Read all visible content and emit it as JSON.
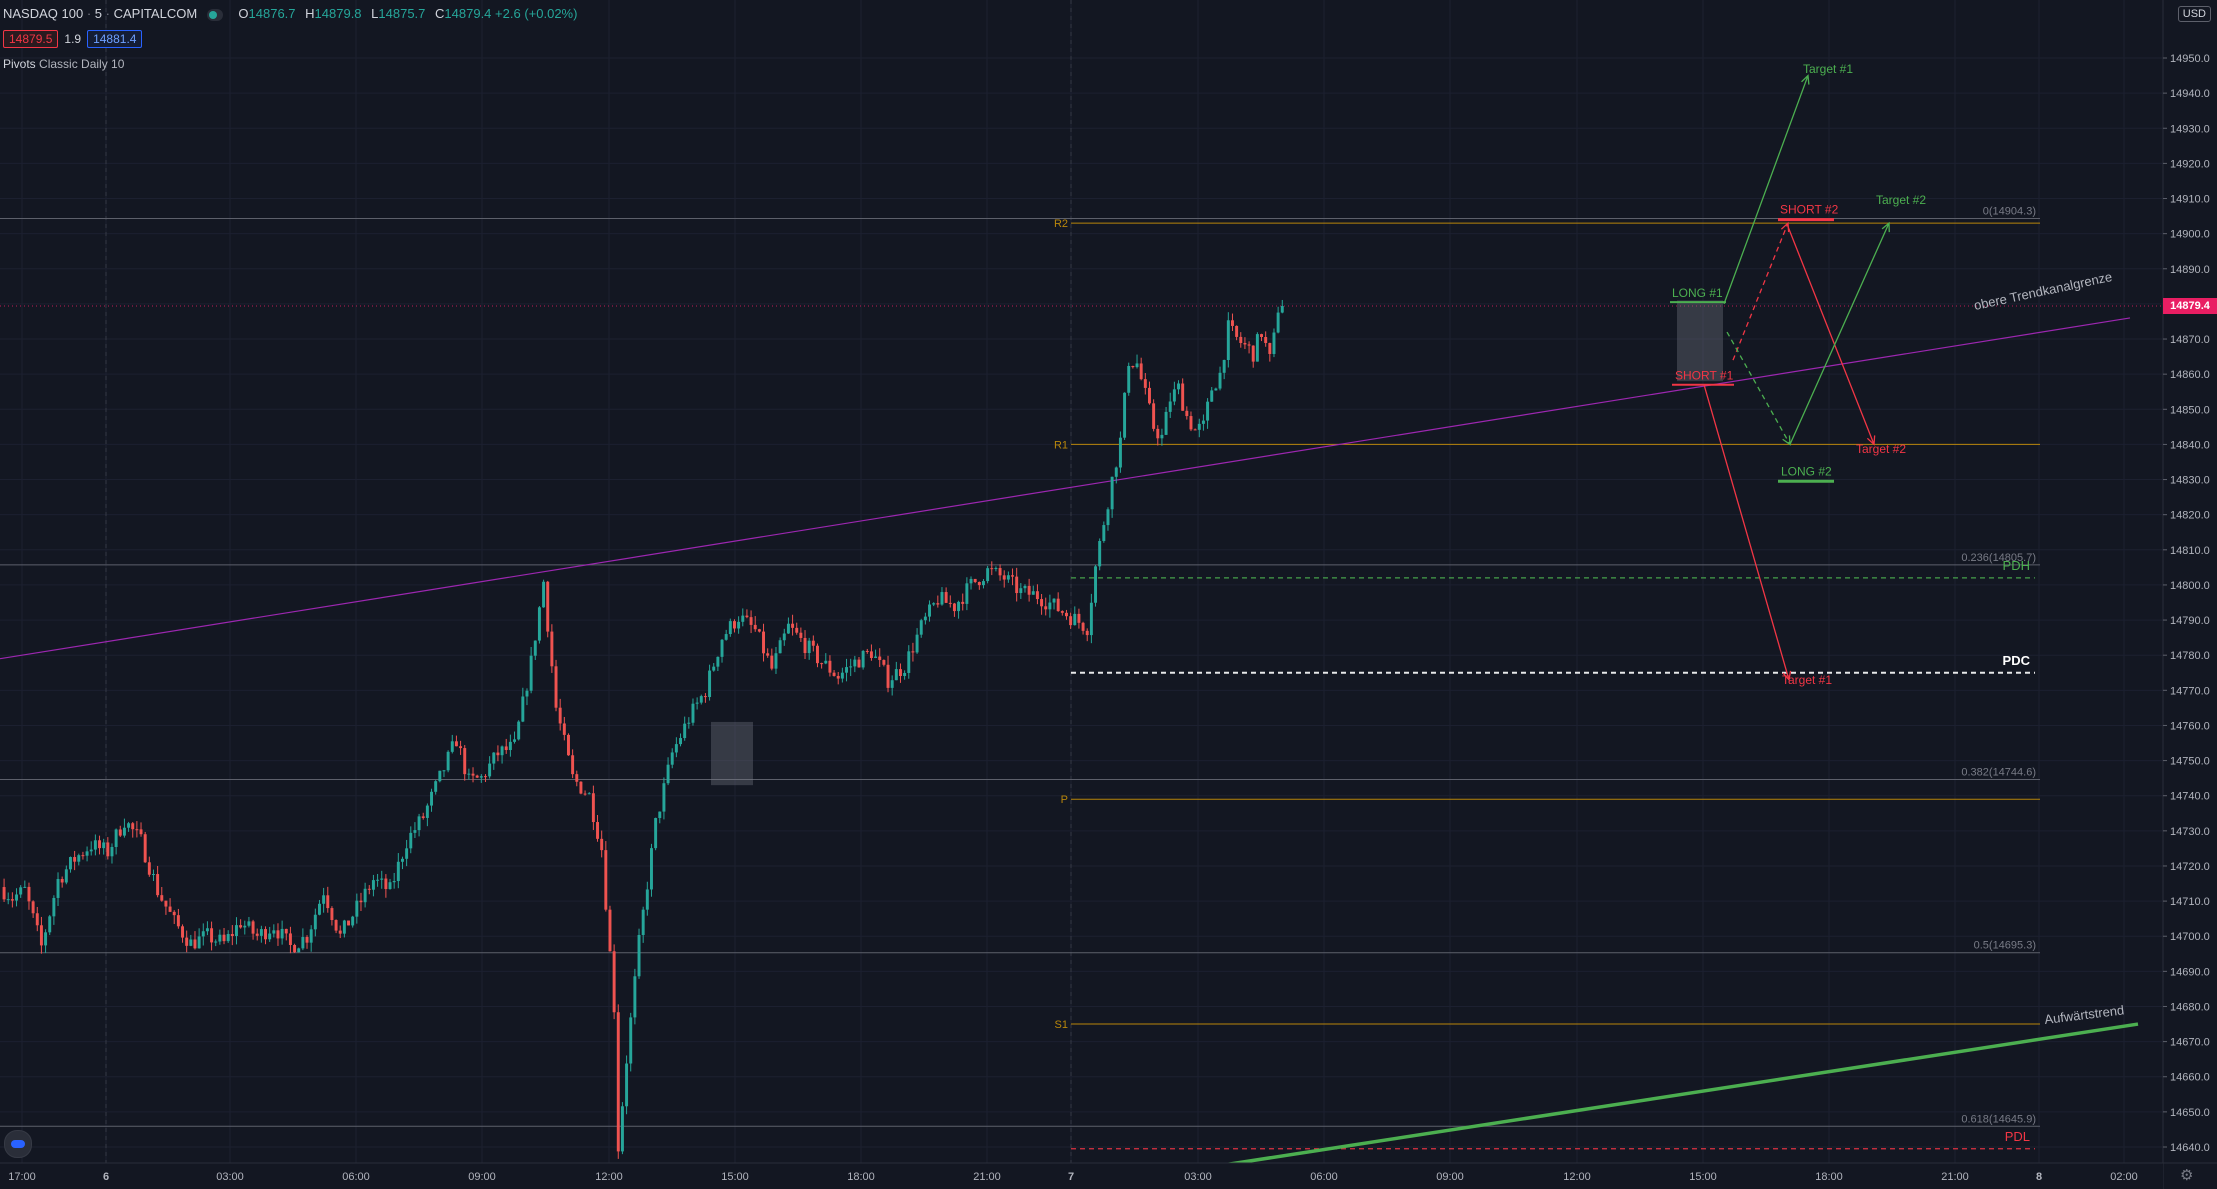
{
  "header": {
    "symbol": "NASDAQ 100",
    "interval": "5",
    "exchange": "CAPITALCOM",
    "open_label": "O",
    "open": "14876.7",
    "high_label": "H",
    "high": "14879.8",
    "low_label": "L",
    "low": "14875.7",
    "close_label": "C",
    "close": "14879.4",
    "change": "+2.6 (+0.02%)",
    "bid": "14879.5",
    "spread": "1.9",
    "ask": "14881.4",
    "indicator_name": "Pivots",
    "indicator_params": "Classic Daily 10",
    "currency": "USD"
  },
  "colors": {
    "background": "#131722",
    "up": "#26a69a",
    "down": "#ef5350",
    "pivot": "#b8860b",
    "trend_purple": "#9c27b0",
    "trend_green": "#4caf50",
    "price_tag": "#e91e63",
    "fib": "#787b86"
  },
  "chart_data": {
    "type": "candlestick",
    "ylim": [
      14632,
      14958
    ],
    "y_ticks": [
      "14950.0",
      "14940.0",
      "14930.0",
      "14920.0",
      "14910.0",
      "14900.0",
      "14890.0",
      "14880.0",
      "14870.0",
      "14860.0",
      "14850.0",
      "14840.0",
      "14830.0",
      "14820.0",
      "14810.0",
      "14800.0",
      "14790.0",
      "14780.0",
      "14770.0",
      "14760.0",
      "14750.0",
      "14740.0",
      "14730.0",
      "14720.0",
      "14710.0",
      "14700.0",
      "14690.0",
      "14680.0",
      "14670.0",
      "14660.0",
      "14650.0",
      "14640.0"
    ],
    "x_ticks": [
      "17:00",
      "6",
      "03:00",
      "06:00",
      "09:00",
      "12:00",
      "15:00",
      "18:00",
      "21:00",
      "7",
      "03:00",
      "06:00",
      "09:00",
      "12:00",
      "15:00",
      "18:00",
      "21:00",
      "8",
      "02:00"
    ],
    "last_price": "14879.4",
    "price_path": [
      [
        0,
        14714
      ],
      [
        3,
        14711
      ],
      [
        6,
        14713
      ],
      [
        10,
        14697
      ],
      [
        14,
        14716
      ],
      [
        18,
        14722
      ],
      [
        22,
        14726
      ],
      [
        26,
        14724
      ],
      [
        30,
        14733
      ],
      [
        34,
        14727
      ],
      [
        38,
        14713
      ],
      [
        42,
        14704
      ],
      [
        46,
        14698
      ],
      [
        50,
        14700
      ],
      [
        54,
        14698
      ],
      [
        58,
        14704
      ],
      [
        62,
        14700
      ],
      [
        66,
        14703
      ],
      [
        70,
        14697
      ],
      [
        74,
        14700
      ],
      [
        78,
        14713
      ],
      [
        82,
        14700
      ],
      [
        86,
        14708
      ],
      [
        90,
        14716
      ],
      [
        94,
        14713
      ],
      [
        98,
        14727
      ],
      [
        102,
        14734
      ],
      [
        106,
        14745
      ],
      [
        110,
        14756
      ],
      [
        113,
        14744
      ],
      [
        116,
        14745
      ],
      [
        120,
        14752
      ],
      [
        124,
        14754
      ],
      [
        128,
        14778
      ],
      [
        131,
        14801
      ],
      [
        134,
        14765
      ],
      [
        138,
        14745
      ],
      [
        142,
        14740
      ],
      [
        145,
        14725
      ],
      [
        148,
        14680
      ],
      [
        149,
        14640
      ],
      [
        151,
        14665
      ],
      [
        154,
        14698
      ],
      [
        158,
        14732
      ],
      [
        162,
        14752
      ],
      [
        166,
        14762
      ],
      [
        170,
        14770
      ],
      [
        174,
        14785
      ],
      [
        178,
        14791
      ],
      [
        182,
        14787
      ],
      [
        186,
        14776
      ],
      [
        190,
        14788
      ],
      [
        194,
        14783
      ],
      [
        198,
        14778
      ],
      [
        202,
        14774
      ],
      [
        206,
        14778
      ],
      [
        210,
        14781
      ],
      [
        214,
        14773
      ],
      [
        218,
        14777
      ],
      [
        222,
        14788
      ],
      [
        226,
        14796
      ],
      [
        230,
        14794
      ],
      [
        234,
        14800
      ],
      [
        238,
        14804
      ],
      [
        242,
        14802
      ],
      [
        246,
        14798
      ],
      [
        250,
        14797
      ],
      [
        254,
        14794
      ],
      [
        258,
        14791
      ],
      [
        262,
        14788
      ],
      [
        264,
        14805
      ],
      [
        266,
        14818
      ],
      [
        268,
        14830
      ],
      [
        270,
        14841
      ],
      [
        272,
        14864
      ],
      [
        274,
        14863
      ],
      [
        276,
        14854
      ],
      [
        278,
        14845
      ],
      [
        280,
        14842
      ],
      [
        282,
        14853
      ],
      [
        284,
        14856
      ],
      [
        286,
        14848
      ],
      [
        288,
        14844
      ],
      [
        290,
        14845
      ],
      [
        292,
        14856
      ],
      [
        294,
        14860
      ],
      [
        296,
        14873
      ],
      [
        298,
        14870
      ],
      [
        300,
        14868
      ],
      [
        302,
        14866
      ],
      [
        304,
        14872
      ],
      [
        305,
        14868
      ],
      [
        306,
        14864
      ],
      [
        307,
        14870
      ],
      [
        308,
        14879
      ]
    ],
    "pivot_levels": [
      {
        "label": "R2",
        "value": 14903.0
      },
      {
        "label": "R1",
        "value": 14840.0
      },
      {
        "label": "P",
        "value": 14739.0
      },
      {
        "label": "S1",
        "value": 14675.0
      }
    ],
    "fib_levels": [
      {
        "label": "0(14904.3)",
        "value": 14904.3
      },
      {
        "label": "0.236(14805.7)",
        "value": 14805.7
      },
      {
        "label": "0.382(14744.6)",
        "value": 14744.6
      },
      {
        "label": "0.5(14695.3)",
        "value": 14695.3
      },
      {
        "label": "0.618(14645.9)",
        "value": 14645.9
      }
    ],
    "reference_levels": [
      {
        "label": "PDH",
        "value": 14802.0,
        "color": "#4caf50"
      },
      {
        "label": "PDC",
        "value": 14775.0,
        "color": "#ffffff"
      },
      {
        "label": "PDL",
        "value": 14639.5,
        "color": "#f23645"
      }
    ],
    "annotations": {
      "upper_trend": "obere Trendkanalgrenze",
      "lower_trend": "Aufwärtstrend",
      "long1": "LONG #1",
      "short1": "SHORT #1",
      "short2": "SHORT #2",
      "long2": "LONG #2",
      "target1_up": "Target #1",
      "target2_up": "Target #2",
      "target1_down": "Target #1",
      "target2_down": "Target #2"
    },
    "grid": true
  }
}
